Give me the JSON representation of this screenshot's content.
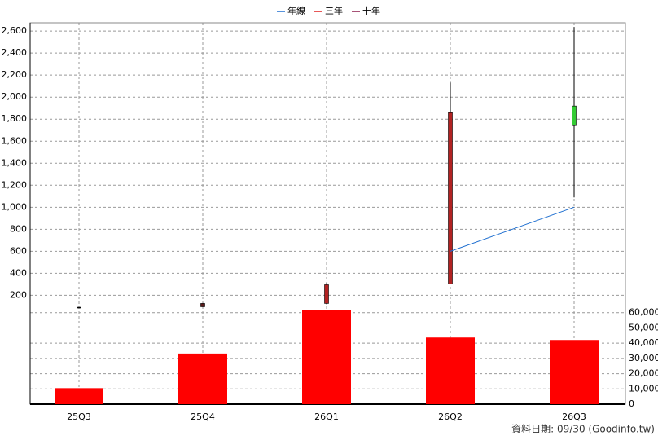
{
  "chart_data": [
    {
      "type": "candlestick",
      "categories": [
        "25Q3",
        "25Q4",
        "26Q1",
        "26Q2",
        "26Q3"
      ],
      "open": [
        89,
        96,
        126,
        304,
        1919
      ],
      "high": [
        92,
        130,
        311,
        2133,
        2637
      ],
      "low": [
        89,
        95,
        119,
        304,
        1089
      ],
      "close": [
        92,
        126,
        296,
        1859,
        1741
      ],
      "candle_colors": [
        "#000000",
        "#5a1a1a",
        "#b22222",
        "#b22222",
        "#33cc33"
      ],
      "series": [
        {
          "name": "年線",
          "color": "#1f6fd0",
          "values": [
            null,
            null,
            null,
            600,
            1000
          ]
        },
        {
          "name": "三年",
          "color": "#e02020",
          "values": [
            null,
            null,
            null,
            null,
            null
          ]
        },
        {
          "name": "十年",
          "color": "#8b1a4a",
          "values": [
            null,
            null,
            null,
            null,
            null
          ]
        }
      ],
      "ylim": [
        70,
        2675
      ],
      "yticks": [
        200,
        400,
        600,
        800,
        {
          "value": 1000,
          "label": "1,000"
        },
        {
          "value": 1200,
          "label": "1,200"
        },
        {
          "value": 1400,
          "label": "1,400"
        },
        {
          "value": 1600,
          "label": "1,600"
        },
        {
          "value": 1800,
          "label": "1,800"
        },
        {
          "value": 2000,
          "label": "2,000"
        },
        {
          "value": 2200,
          "label": "2,200"
        },
        {
          "value": 2400,
          "label": "2,400"
        },
        {
          "value": 2600,
          "label": "2,600"
        }
      ],
      "grid": true
    },
    {
      "type": "bar",
      "categories": [
        "25Q3",
        "25Q4",
        "26Q1",
        "26Q2",
        "26Q3"
      ],
      "values": [
        10500,
        33200,
        61600,
        43700,
        42100
      ],
      "color": "#ff0000",
      "y2lim": [
        0,
        62000
      ],
      "y2ticks": [
        0,
        {
          "value": 10000,
          "label": "10,000"
        },
        {
          "value": 20000,
          "label": "20,000"
        },
        {
          "value": 30000,
          "label": "30,000"
        },
        {
          "value": 40000,
          "label": "40,000"
        },
        {
          "value": 50000,
          "label": "50,000"
        },
        {
          "value": 60000,
          "label": "60,000"
        }
      ],
      "grid": true,
      "note": "資料日期: 09/30  (Goodinfo.tw)"
    }
  ]
}
